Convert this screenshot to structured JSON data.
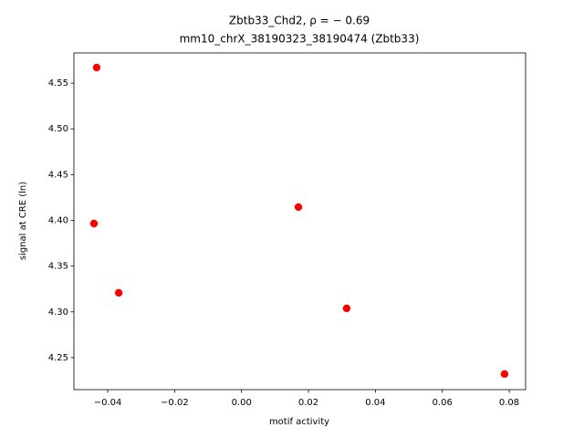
{
  "chart_data": {
    "type": "scatter",
    "title": "Zbtb33_Chd2, ρ = − 0.69",
    "subtitle": "mm10_chrX_38190323_38190474 (Zbtb33)",
    "x_label": "motif activity",
    "y_label": "signal at CRE (ln)",
    "color": "#ff0000",
    "x": [
      -0.0433,
      -0.0441,
      -0.0367,
      0.017,
      0.0314,
      0.0786
    ],
    "values": [
      4.567,
      4.3965,
      4.3208,
      4.4145,
      4.3038,
      4.2321
    ],
    "xlim": [
      -0.0501,
      0.0849
    ],
    "ylim": [
      4.215,
      4.583
    ],
    "xticks": [
      {
        "value": -0.04,
        "label": "−0.04"
      },
      {
        "value": -0.02,
        "label": "−0.02"
      },
      {
        "value": 0,
        "label": "0.00"
      },
      0.02,
      0.04,
      0.06,
      0.08
    ],
    "yticks": [
      4.25,
      {
        "value": 4.3,
        "label": "4.30"
      },
      4.35,
      {
        "value": 4.4,
        "label": "4.40"
      },
      4.45,
      {
        "value": 4.5,
        "label": "4.50"
      },
      4.55
    ]
  }
}
